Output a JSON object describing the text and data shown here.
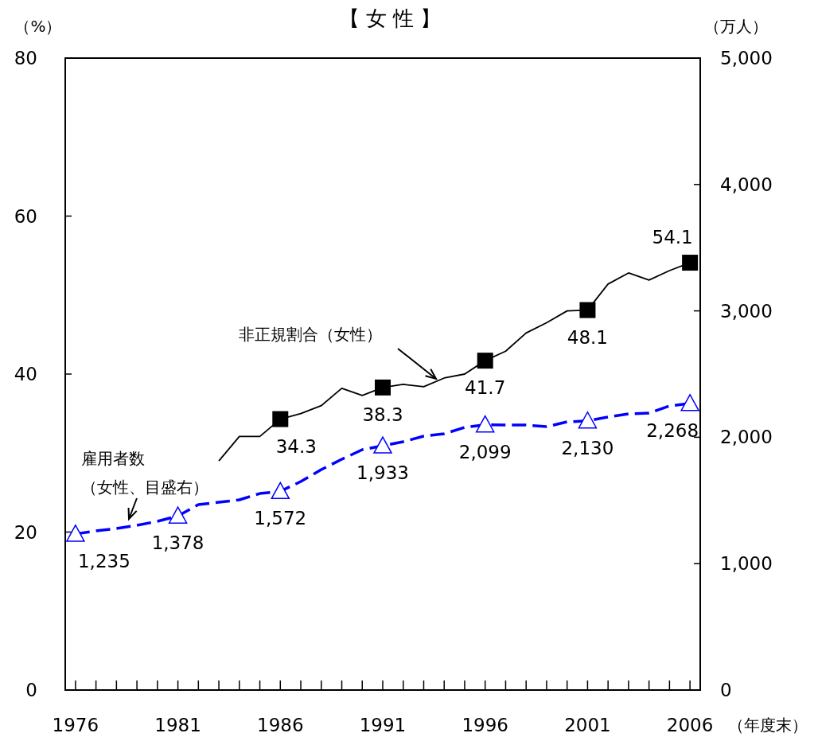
{
  "chart_data": {
    "type": "line",
    "title": "【 女 性 】",
    "ylabel": "（%）",
    "y2label": "（万人）",
    "xlabel": "（年度末）",
    "xlim": [
      1975.5,
      2006.5
    ],
    "xticks": [
      1976,
      {
        "value": 1977,
        "label": null
      },
      {
        "value": 1978,
        "label": null
      },
      {
        "value": 1979,
        "label": null
      },
      {
        "value": 1980,
        "label": null
      },
      1981,
      {
        "value": 1982,
        "label": null
      },
      {
        "value": 1983,
        "label": null
      },
      {
        "value": 1984,
        "label": null
      },
      {
        "value": 1985,
        "label": null
      },
      1986,
      {
        "value": 1987,
        "label": null
      },
      {
        "value": 1988,
        "label": null
      },
      {
        "value": 1989,
        "label": null
      },
      {
        "value": 1990,
        "label": null
      },
      1991,
      {
        "value": 1992,
        "label": null
      },
      {
        "value": 1993,
        "label": null
      },
      {
        "value": 1994,
        "label": null
      },
      {
        "value": 1995,
        "label": null
      },
      1996,
      {
        "value": 1997,
        "label": null
      },
      {
        "value": 1998,
        "label": null
      },
      {
        "value": 1999,
        "label": null
      },
      {
        "value": 2000,
        "label": null
      },
      2001,
      {
        "value": 2002,
        "label": null
      },
      {
        "value": 2003,
        "label": null
      },
      {
        "value": 2004,
        "label": null
      },
      {
        "value": 2005,
        "label": null
      },
      2006
    ],
    "ylim": [
      0,
      80
    ],
    "yticks": [
      0,
      20,
      40,
      60,
      80
    ],
    "y2lim": [
      0,
      5000
    ],
    "y2ticks": [
      0,
      {
        "value": 1000,
        "label": "1,000"
      },
      {
        "value": 2000,
        "label": "2,000"
      },
      {
        "value": 3000,
        "label": "3,000"
      },
      {
        "value": 4000,
        "label": "4,000"
      },
      {
        "value": 5000,
        "label": "5,000"
      }
    ],
    "grid": false,
    "series": [
      {
        "name": "非正規割合（女性）",
        "color": "#000000",
        "line_style": "solid",
        "x": [
          1983,
          1984,
          1985,
          1986,
          1987,
          1988,
          1989,
          1990,
          1991,
          1992,
          1993,
          1994,
          1995,
          1996,
          1997,
          1998,
          1999,
          2000,
          2001,
          2002,
          2003,
          2004,
          2005,
          2006
        ],
        "values": [
          29.0,
          32.1,
          32.1,
          34.3,
          35.0,
          36.0,
          38.2,
          37.3,
          38.3,
          38.7,
          38.4,
          39.5,
          40.0,
          41.7,
          42.9,
          45.2,
          46.5,
          48.0,
          48.1,
          51.4,
          52.8,
          51.9,
          53.1,
          54.1
        ]
      },
      {
        "type": "scatter",
        "color": "#000000",
        "marker": "square",
        "x": [
          1986,
          1991,
          1996,
          2001,
          2006
        ],
        "values": [
          34.3,
          38.3,
          41.7,
          48.1,
          54.1
        ],
        "value_labels": [
          "34.3",
          "38.3",
          "41.7",
          "48.1",
          "54.1"
        ]
      },
      {
        "name": "雇用者数（女性、目盛右）",
        "axis": "y2",
        "color": "#0000ff",
        "line_style": "dashed",
        "x": [
          1976,
          1977,
          1978,
          1979,
          1980,
          1981,
          1982,
          1983,
          1984,
          1985,
          1986,
          1987,
          1988,
          1989,
          1990,
          1991,
          1992,
          1993,
          1994,
          1995,
          1996,
          1997,
          1998,
          1999,
          2000,
          2001,
          2002,
          2003,
          2004,
          2005,
          2006
        ],
        "values": [
          1235,
          1259,
          1278,
          1303,
          1335,
          1378,
          1467,
          1486,
          1505,
          1555,
          1572,
          1650,
          1744,
          1826,
          1902,
          1933,
          1965,
          2009,
          2028,
          2078,
          2099,
          2097,
          2097,
          2084,
          2122,
          2130,
          2160,
          2185,
          2191,
          2248,
          2268
        ]
      },
      {
        "type": "scatter",
        "axis": "y2",
        "color": "#0000ff",
        "marker": "triangle",
        "x": [
          1976,
          1981,
          1986,
          1991,
          1996,
          2001,
          2006
        ],
        "values": [
          1235,
          1378,
          1572,
          1933,
          2099,
          2130,
          2268
        ],
        "value_labels": [
          "1,235",
          "1,378",
          "1,572",
          "1,933",
          "2,099",
          "2,130",
          "2,268"
        ]
      }
    ]
  }
}
